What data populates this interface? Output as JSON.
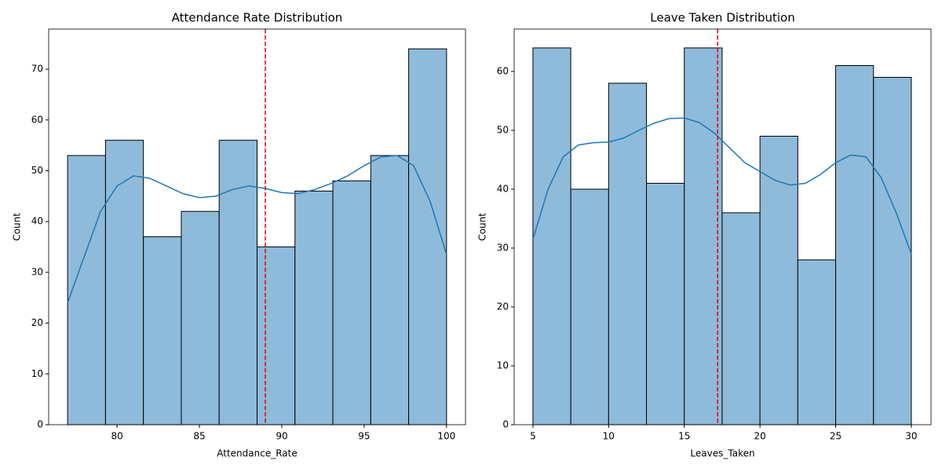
{
  "chart_data": [
    {
      "type": "histogram",
      "title": "Attendance Rate Distribution",
      "xlabel": "Attendance_Rate",
      "ylabel": "Count",
      "bins": [
        77,
        79.3,
        81.6,
        83.9,
        86.2,
        88.5,
        90.8,
        93.1,
        95.4,
        97.7,
        100
      ],
      "values": [
        53,
        56,
        37,
        42,
        56,
        35,
        46,
        48,
        53,
        74
      ],
      "color": "#8fbbda",
      "edgecolor": "#000000",
      "kde": {
        "color": "#1f77b4",
        "x": [
          77,
          78,
          79,
          80,
          81,
          82,
          83,
          84,
          85,
          86,
          87,
          88,
          89,
          90,
          91,
          92,
          93,
          94,
          95,
          96,
          97,
          98,
          99,
          100
        ],
        "values": [
          24,
          33,
          42,
          47,
          49,
          48.5,
          47,
          45.5,
          44.7,
          45,
          46.3,
          47,
          46.5,
          45.7,
          45.5,
          46.3,
          47.5,
          49,
          51,
          52.7,
          53,
          51,
          44,
          33.5
        ]
      },
      "mean_line": {
        "value": 89.0,
        "color": "#e8000b"
      },
      "xlim": [
        75.85,
        101.15
      ],
      "xticks": [
        80,
        85,
        90,
        95,
        100
      ],
      "ylim": [
        0,
        77.9
      ],
      "yticks": [
        0,
        10,
        20,
        30,
        40,
        50,
        60,
        70
      ]
    },
    {
      "type": "histogram",
      "title": "Leave Taken Distribution",
      "xlabel": "Leaves_Taken",
      "ylabel": "Count",
      "bins": [
        5,
        7.5,
        10,
        12.5,
        15,
        17.5,
        20,
        22.5,
        25,
        27.5,
        30
      ],
      "values": [
        64,
        40,
        58,
        41,
        64,
        36,
        49,
        28,
        61,
        59
      ],
      "color": "#8fbbda",
      "edgecolor": "#000000",
      "kde": {
        "color": "#1f77b4",
        "x": [
          5,
          6,
          7,
          8,
          9,
          10,
          11,
          12,
          13,
          14,
          15,
          16,
          17,
          18,
          19,
          20,
          21,
          22,
          23,
          24,
          25,
          26,
          27,
          28,
          29,
          30
        ],
        "values": [
          31.5,
          40,
          45.5,
          47.5,
          47.9,
          48,
          48.7,
          50,
          51.2,
          52,
          52.1,
          51.3,
          49.5,
          47,
          44.5,
          43,
          41.5,
          40.7,
          41,
          42.5,
          44.5,
          45.8,
          45.5,
          42,
          36,
          29
        ]
      },
      "mean_line": {
        "value": 17.2,
        "color": "#e8000b"
      },
      "xlim": [
        3.76,
        31.3
      ],
      "xticks": [
        5,
        10,
        15,
        20,
        25,
        30
      ],
      "ylim": [
        0,
        67.2
      ],
      "yticks": [
        0,
        10,
        20,
        30,
        40,
        50,
        60
      ]
    }
  ]
}
